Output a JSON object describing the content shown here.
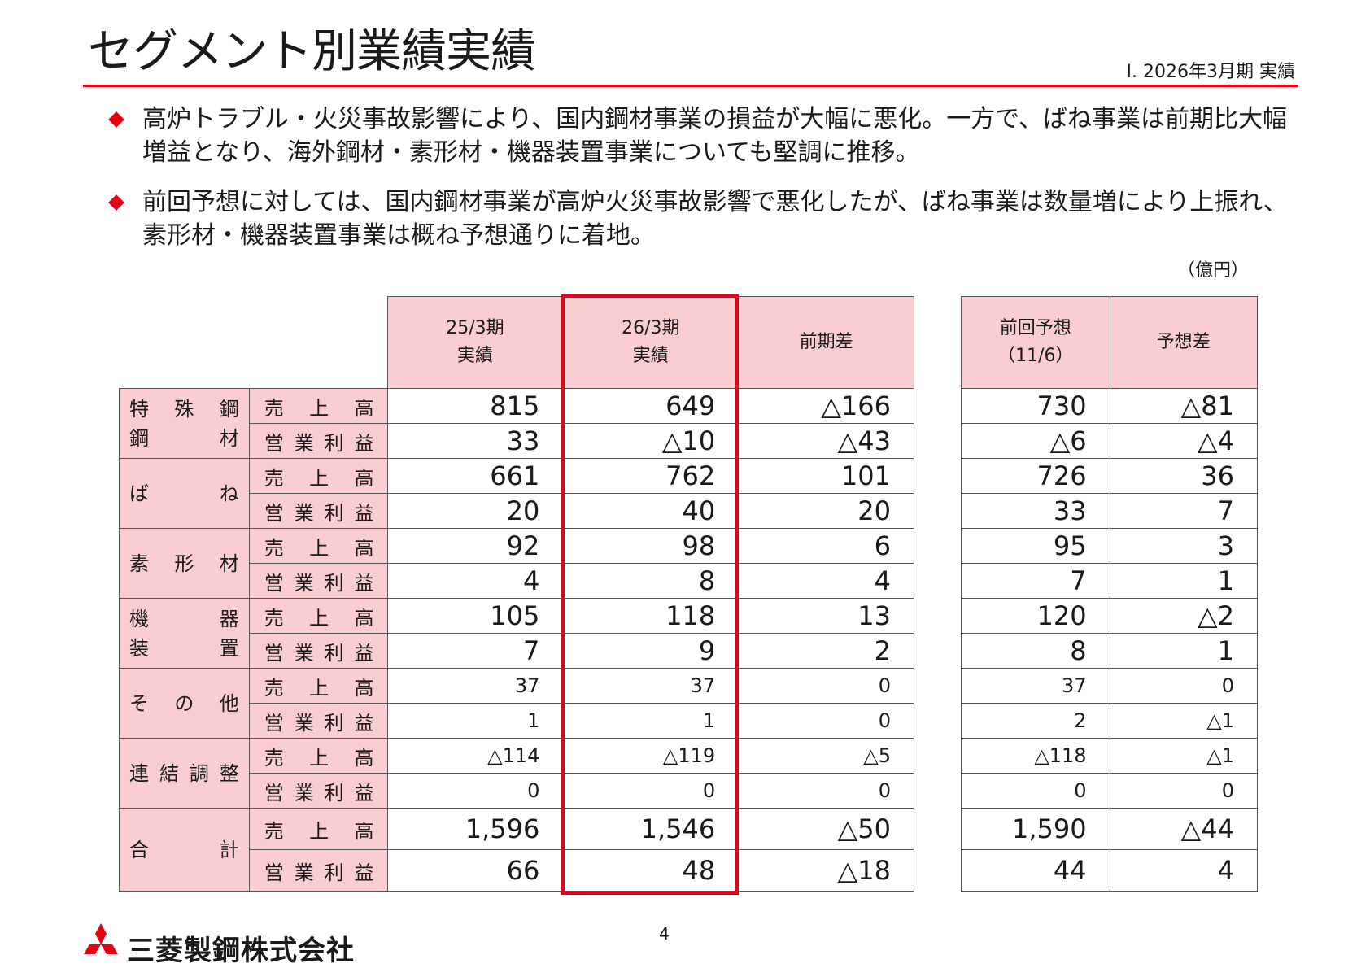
{
  "header": {
    "title": "セグメント別業績実績",
    "subtitle": "Ⅰ. 2026年3月期 実績"
  },
  "bullets": [
    "高炉トラブル・火災事故影響により、国内鋼材事業の損益が大幅に悪化。一方で、ばね事業は前期比大幅増益となり、海外鋼材・素形材・機器装置事業についても堅調に推移。",
    "前回予想に対しては、国内鋼材事業が高炉火災事故影響で悪化したが、ばね事業は数量増により上振れ、素形材・機器装置事業は概ね予想通りに着地。"
  ],
  "unit": "（億円）",
  "table": {
    "headers": {
      "fy25_line1": "25/3期",
      "fy25_line2": "実績",
      "fy26_line1": "26/3期",
      "fy26_line2": "実績",
      "yoy": "前期差",
      "forecast_line1": "前回予想",
      "forecast_line2": "（11/6）",
      "vs_forecast": "予想差"
    },
    "metrics": {
      "sales": "売上高",
      "profit": "営業利益"
    },
    "segments": [
      {
        "name_line1": "特殊鋼",
        "name_line2": "鋼材",
        "sales": {
          "fy25": "815",
          "fy26": "649",
          "yoy": "△166",
          "forecast": "730",
          "vs_forecast": "△81"
        },
        "profit": {
          "fy25": "33",
          "fy26": "△10",
          "yoy": "△43",
          "forecast": "△6",
          "vs_forecast": "△4"
        }
      },
      {
        "name_line1": "ばね",
        "name_line2": "",
        "sales": {
          "fy25": "661",
          "fy26": "762",
          "yoy": "101",
          "forecast": "726",
          "vs_forecast": "36"
        },
        "profit": {
          "fy25": "20",
          "fy26": "40",
          "yoy": "20",
          "forecast": "33",
          "vs_forecast": "7"
        }
      },
      {
        "name_line1": "素形材",
        "name_line2": "",
        "sales": {
          "fy25": "92",
          "fy26": "98",
          "yoy": "6",
          "forecast": "95",
          "vs_forecast": "3"
        },
        "profit": {
          "fy25": "4",
          "fy26": "8",
          "yoy": "4",
          "forecast": "7",
          "vs_forecast": "1"
        }
      },
      {
        "name_line1": "機器",
        "name_line2": "装置",
        "sales": {
          "fy25": "105",
          "fy26": "118",
          "yoy": "13",
          "forecast": "120",
          "vs_forecast": "△2"
        },
        "profit": {
          "fy25": "7",
          "fy26": "9",
          "yoy": "2",
          "forecast": "8",
          "vs_forecast": "1"
        }
      },
      {
        "name_line1": "その他",
        "name_line2": "",
        "sales": {
          "fy25": "37",
          "fy26": "37",
          "yoy": "0",
          "forecast": "37",
          "vs_forecast": "0"
        },
        "profit": {
          "fy25": "1",
          "fy26": "1",
          "yoy": "0",
          "forecast": "2",
          "vs_forecast": "△1"
        }
      },
      {
        "name_line1": "連結調整",
        "name_line2": "",
        "sales": {
          "fy25": "△114",
          "fy26": "△119",
          "yoy": "△5",
          "forecast": "△118",
          "vs_forecast": "△1"
        },
        "profit": {
          "fy25": "0",
          "fy26": "0",
          "yoy": "0",
          "forecast": "0",
          "vs_forecast": "0"
        }
      },
      {
        "name_line1": "合計",
        "name_line2": "",
        "sales": {
          "fy25": "1,596",
          "fy26": "1,546",
          "yoy": "△50",
          "forecast": "1,590",
          "vs_forecast": "△44"
        },
        "profit": {
          "fy25": "66",
          "fy26": "48",
          "yoy": "△18",
          "forecast": "44",
          "vs_forecast": "4"
        }
      }
    ]
  },
  "footer": {
    "page_number": "4",
    "company": "三菱製鋼株式会社",
    "logo_icon": "mitsubishi-three-diamonds-icon",
    "logo_color": "#e60012"
  },
  "colors": {
    "accent": "#e60012",
    "header_fill": "#f9cdd1"
  }
}
